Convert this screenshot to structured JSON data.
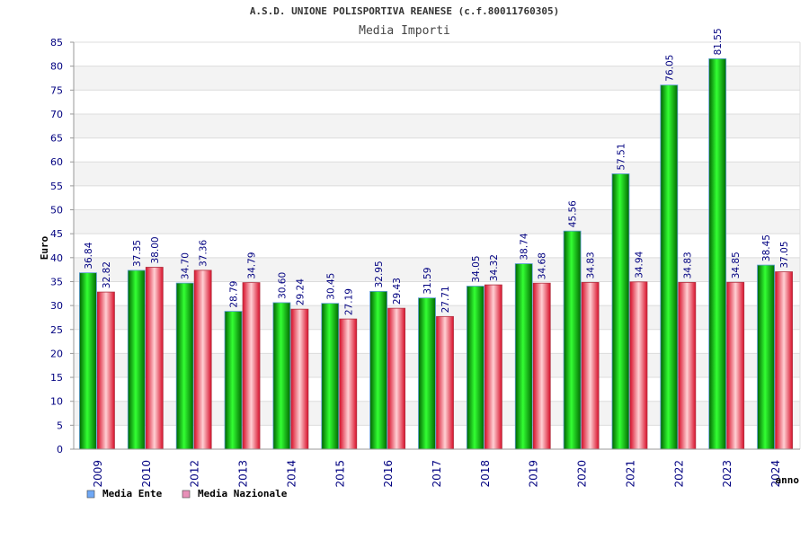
{
  "chart_data": {
    "type": "bar",
    "title": "A.S.D. UNIONE POLISPORTIVA REANESE (c.f.80011760305)",
    "subtitle": "Media Importi",
    "xlabel": "anno",
    "ylabel": "Euro",
    "ylim": [
      0,
      85
    ],
    "ytick_step": 5,
    "grid": true,
    "legend_position": "bottom-left",
    "categories": [
      "2009",
      "2010",
      "2012",
      "2013",
      "2014",
      "2015",
      "2016",
      "2017",
      "2018",
      "2019",
      "2020",
      "2021",
      "2022",
      "2023",
      "2024"
    ],
    "series": [
      {
        "name": "Media Ente",
        "color": "#00b000",
        "legend_color": "#6fa8f5",
        "values": [
          36.84,
          37.35,
          34.7,
          28.79,
          30.6,
          30.45,
          32.95,
          31.59,
          34.05,
          38.74,
          45.56,
          57.51,
          76.05,
          81.55,
          38.45
        ],
        "labels": [
          "36.84",
          "37.35",
          "34.70",
          "28.79",
          "30.60",
          "30.45",
          "32.95",
          "31.59",
          "34.05",
          "38.74",
          "45.56",
          "57.51",
          "76.05",
          "81.55",
          "38.45"
        ]
      },
      {
        "name": "Media Nazionale",
        "color": "#e83040",
        "legend_color": "#e890b8",
        "values": [
          32.82,
          38.0,
          37.36,
          34.79,
          29.24,
          27.19,
          29.43,
          27.71,
          34.32,
          34.68,
          34.83,
          34.94,
          34.83,
          34.85,
          37.05
        ],
        "labels": [
          "32.82",
          "38.00",
          "37.36",
          "34.79",
          "29.24",
          "27.19",
          "29.43",
          "27.71",
          "34.32",
          "34.68",
          "34.83",
          "34.94",
          "34.83",
          "34.85",
          "37.05"
        ]
      }
    ]
  }
}
